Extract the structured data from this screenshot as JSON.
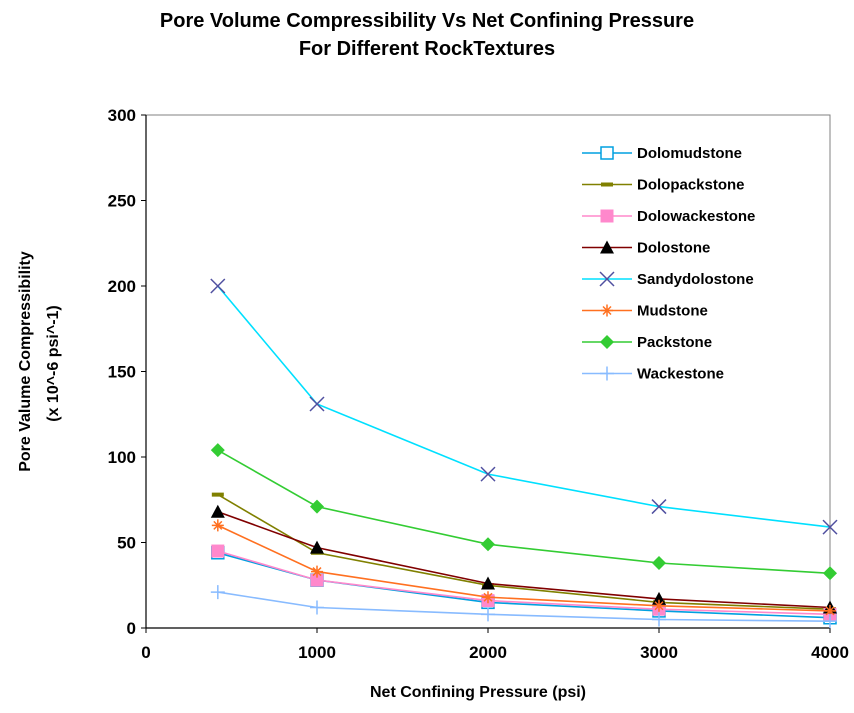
{
  "chart_data": {
    "type": "line",
    "title": "Pore Volume Compressibility Vs Net Confining Pressure",
    "subtitle": "For Different RockTextures",
    "xlabel": "Net Confining Pressure (psi)",
    "ylabel": "Pore Valume Compressibility",
    "ylabel2": "(x 10^-6 psi^-1)",
    "xlim": [
      0,
      4000
    ],
    "ylim": [
      0,
      300
    ],
    "xticks": [
      "0",
      "1000",
      "2000",
      "3000",
      "4000"
    ],
    "yticks": [
      "0",
      "50",
      "100",
      "150",
      "200",
      "250",
      "300"
    ],
    "grid": false,
    "legend_position": "top-right",
    "x": [
      420,
      1000,
      2000,
      3000,
      4000
    ],
    "series": [
      {
        "name": "Dolomudstone",
        "color": "#00a0e0",
        "marker": "square-open",
        "values": [
          44,
          28,
          15,
          10,
          6
        ]
      },
      {
        "name": "Dolopackstone",
        "color": "#808000",
        "marker": "dash",
        "values": [
          78,
          44,
          25,
          15,
          11
        ]
      },
      {
        "name": "Dolowackestone",
        "color": "#ff88cc",
        "marker": "square",
        "values": [
          45,
          28,
          16,
          11,
          8
        ]
      },
      {
        "name": "Dolostone",
        "color": "#800000",
        "marker": "triangle",
        "values": [
          68,
          47,
          26,
          17,
          12
        ]
      },
      {
        "name": "Sandydolostone",
        "color": "#00e0ff",
        "marker": "x",
        "values": [
          200,
          131,
          90,
          71,
          59
        ]
      },
      {
        "name": "Mudstone",
        "color": "#ff7020",
        "marker": "star",
        "values": [
          60,
          33,
          18,
          13,
          10
        ]
      },
      {
        "name": "Packstone",
        "color": "#33cc33",
        "marker": "diamond",
        "values": [
          104,
          71,
          49,
          38,
          32
        ]
      },
      {
        "name": "Wackestone",
        "color": "#88bbff",
        "marker": "plus",
        "values": [
          21,
          12,
          8,
          5,
          4
        ]
      }
    ]
  }
}
